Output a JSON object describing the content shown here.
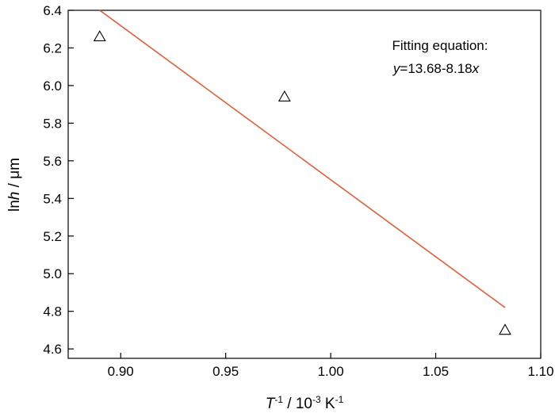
{
  "chart_data": {
    "type": "scatter",
    "title": "",
    "xlabel": {
      "base": "T",
      "sup1": "-1",
      "mid": " / 10",
      "sup2": "-3",
      "unit": " K",
      "sup3": "-1"
    },
    "ylabel": {
      "pre": "ln",
      "ital": "h",
      "post": " / μm"
    },
    "xlim": [
      0.875,
      1.1
    ],
    "ylim": [
      4.55,
      6.4
    ],
    "x_ticks": [
      0.9,
      0.95,
      1.0,
      1.05,
      1.1
    ],
    "x_tick_labels": [
      "0.90",
      "0.95",
      "1.00",
      "1.05",
      "1.10"
    ],
    "y_ticks": [
      4.6,
      4.8,
      5.0,
      5.2,
      5.4,
      5.6,
      5.8,
      6.0,
      6.2,
      6.4
    ],
    "y_tick_labels": [
      "4.6",
      "4.8",
      "5.0",
      "5.2",
      "5.4",
      "5.6",
      "5.8",
      "6.0",
      "6.2",
      "6.4"
    ],
    "points": {
      "marker": "open-triangle",
      "x": [
        0.89,
        0.978,
        1.083
      ],
      "y": [
        6.26,
        5.94,
        4.7
      ]
    },
    "fit": {
      "x": [
        0.89,
        1.083
      ],
      "y": [
        6.4,
        4.82
      ],
      "color": "#e0603a"
    },
    "grid": false,
    "annotation": {
      "line1": "Fitting equation:",
      "eq_var": "y",
      "eq_mid": "=13.68-8.18",
      "eq_var2": "x"
    }
  }
}
